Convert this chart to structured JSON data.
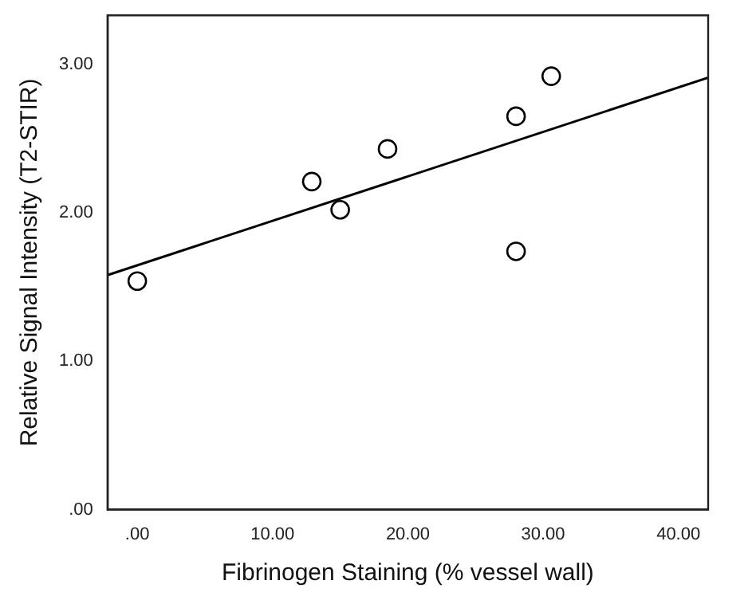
{
  "chart_data": {
    "type": "scatter",
    "xlabel": "Fibrinogen Staining (% vessel wall)",
    "ylabel": "Relative Signal Intensity (T2-STIR)",
    "xlim": [
      -2.2,
      42.2
    ],
    "ylim": [
      0,
      3.33
    ],
    "xticks": [
      {
        "value": 0,
        "label": ".00"
      },
      {
        "value": 10,
        "label": "10.00"
      },
      {
        "value": 20,
        "label": "20.00"
      },
      {
        "value": 30,
        "label": "30.00"
      },
      {
        "value": 40,
        "label": "40.00"
      }
    ],
    "yticks": [
      {
        "value": 0,
        "label": ".00"
      },
      {
        "value": 1,
        "label": "1.00"
      },
      {
        "value": 2,
        "label": "2.00"
      },
      {
        "value": 3,
        "label": "3.00"
      }
    ],
    "grid": false,
    "legend": false,
    "series": [
      {
        "marker": "circle",
        "color": "#000000",
        "x": [
          0,
          12.9,
          15.0,
          18.5,
          28.0,
          28.0,
          30.6
        ],
        "values": [
          1.54,
          2.21,
          2.02,
          2.43,
          2.65,
          1.74,
          2.92
        ]
      },
      {
        "type": "line",
        "marker": "none",
        "color": "#000000",
        "x": [
          -2.2,
          42.2
        ],
        "values": [
          1.58,
          2.91
        ]
      }
    ]
  }
}
